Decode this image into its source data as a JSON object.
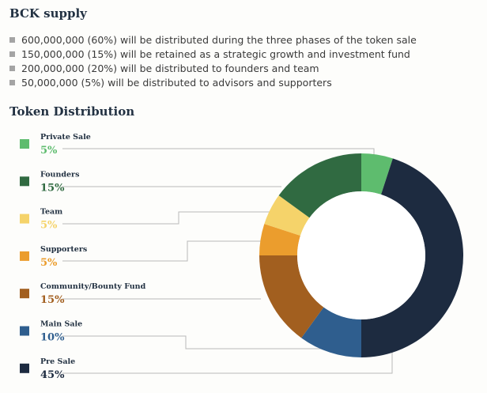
{
  "title": "BCK supply",
  "bullets": [
    "600,000,000 (60%) will be distributed during the three phases of the token sale",
    "150,000,000 (15%) will be retained as a strategic growth and investment fund",
    "200,000,000 (20%) will be distributed to founders and team",
    "50,000,000 (5%) will be distributed to advisors and supporters"
  ],
  "chart_data": {
    "type": "pie",
    "donut": true,
    "title": "Token Distribution",
    "legend_position": "left",
    "slices": [
      {
        "label": "Private Sale",
        "value": 5,
        "display": "5%",
        "color": "#5ebc6e"
      },
      {
        "label": "Founders",
        "value": 15,
        "display": "15%",
        "color": "#306a41"
      },
      {
        "label": "Team",
        "value": 5,
        "display": "5%",
        "color": "#f5d36a"
      },
      {
        "label": "Supporters",
        "value": 5,
        "display": "5%",
        "color": "#eb9d2d"
      },
      {
        "label": "Community/Bounty Fund",
        "value": 15,
        "display": "15%",
        "color": "#a25f1f"
      },
      {
        "label": "Main Sale",
        "value": 10,
        "display": "10%",
        "color": "#2f5e8e"
      },
      {
        "label": "Pre Sale",
        "value": 45,
        "display": "45%",
        "color": "#1d2b40"
      }
    ],
    "display_order": [
      "Private Sale",
      "Pre Sale",
      "Main Sale",
      "Community/Bounty Fund",
      "Supporters",
      "Team",
      "Founders"
    ]
  }
}
